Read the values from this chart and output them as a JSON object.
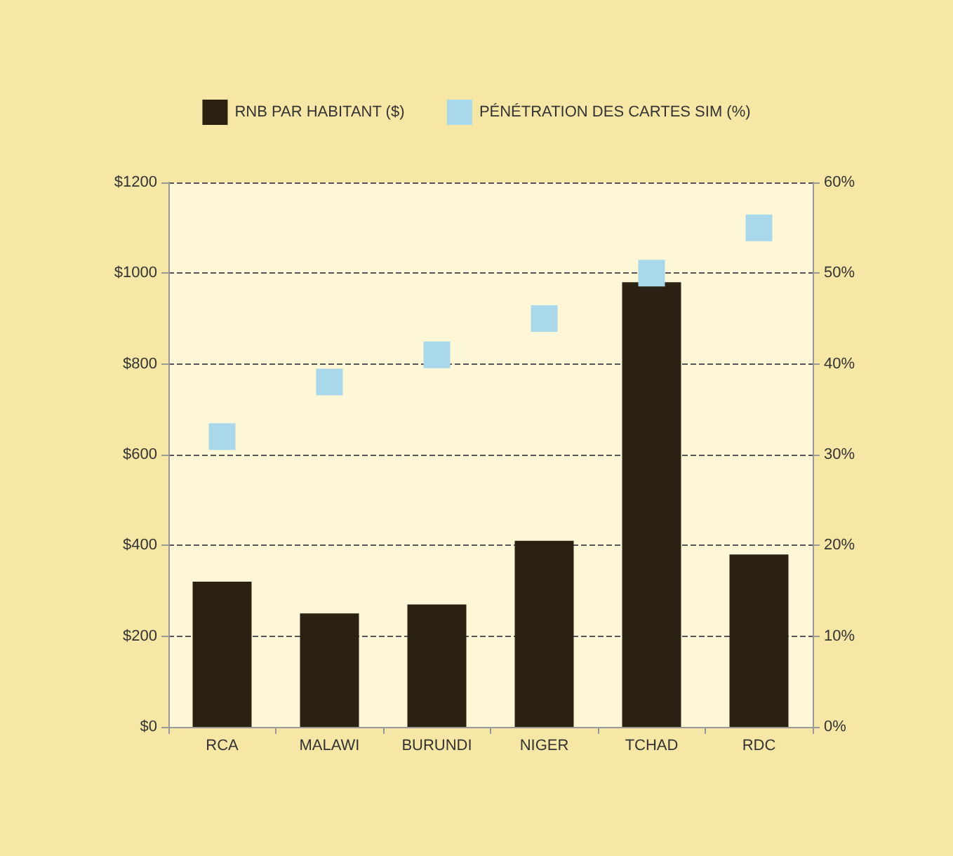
{
  "chart_data": {
    "type": "bar",
    "categories": [
      "RCA",
      "MALAWI",
      "BURUNDI",
      "NIGER",
      "TCHAD",
      "RDC"
    ],
    "series": [
      {
        "name": "RNB PAR HABITANT ($)",
        "color": "#2b2113",
        "values": [
          320,
          250,
          270,
          410,
          980,
          380
        ]
      },
      {
        "name": "PÉNÉTRATION DES CARTES SIM (%)",
        "type": "scatter",
        "axis": "y2",
        "marker": "square",
        "color": "#a8d8ea",
        "x": [
          "RCA",
          "MALAWI",
          "BURUNDI",
          "NIGER",
          "TCHAD",
          "RDC"
        ],
        "values": [
          32,
          38,
          41,
          45,
          50,
          55
        ]
      }
    ],
    "ylim": [
      0,
      1200
    ],
    "yticks": [
      {
        "value": 0,
        "label": "$0"
      },
      {
        "value": 200,
        "label": "$200"
      },
      {
        "value": 400,
        "label": "$400"
      },
      {
        "value": 600,
        "label": "$600"
      },
      {
        "value": 800,
        "label": "$800"
      },
      {
        "value": 1000,
        "label": "$1000"
      },
      {
        "value": 1200,
        "label": "$1200"
      }
    ],
    "y2lim": [
      0,
      60
    ],
    "y2ticks": [
      {
        "value": 0,
        "label": "0%"
      },
      {
        "value": 10,
        "label": "10%"
      },
      {
        "value": 20,
        "label": "20%"
      },
      {
        "value": 30,
        "label": "30%"
      },
      {
        "value": 40,
        "label": "40%"
      },
      {
        "value": 50,
        "label": "50%"
      },
      {
        "value": 60,
        "label": "60%"
      }
    ],
    "grid": "y",
    "legend": "top"
  }
}
